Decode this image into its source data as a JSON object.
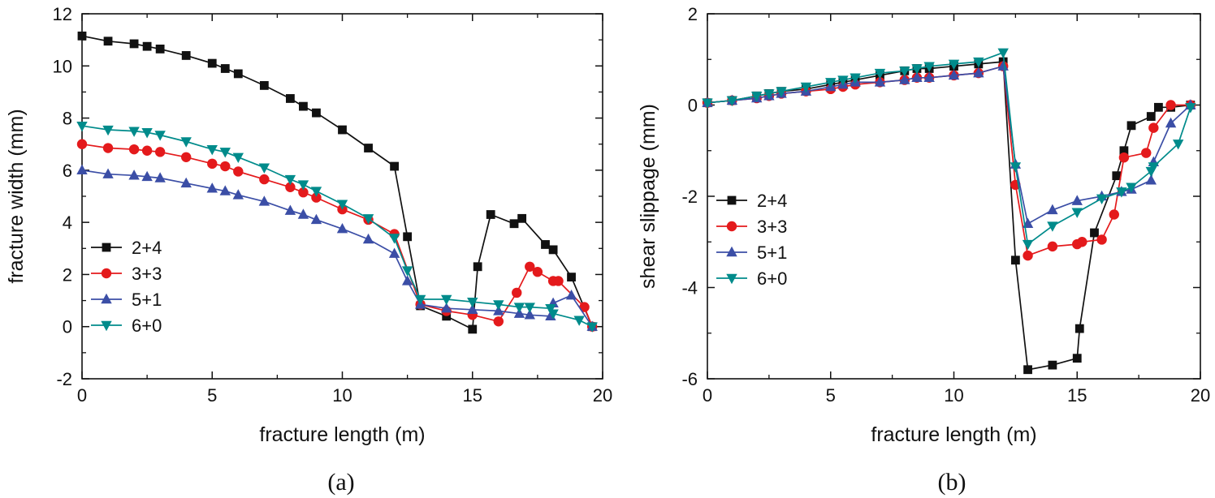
{
  "chart_data": [
    {
      "type": "line",
      "caption": "(a)",
      "xlabel": "fracture length (m)",
      "ylabel": "fracture width (mm)",
      "xlim": [
        0,
        20
      ],
      "ylim": [
        -2,
        12
      ],
      "xticks": [
        0,
        5,
        10,
        15,
        20
      ],
      "yticks": [
        -2,
        0,
        2,
        4,
        6,
        8,
        10,
        12
      ],
      "legend_position": "left-middle",
      "series": [
        {
          "name": "2+4",
          "color": "#111111",
          "marker": "square",
          "x": [
            0,
            1,
            2,
            2.5,
            3,
            4,
            5,
            5.5,
            6,
            7,
            8,
            8.5,
            9,
            10,
            11,
            12,
            12.5,
            13,
            14,
            15,
            15.2,
            15.7,
            16.6,
            16.9,
            17.8,
            18.1,
            18.8,
            19.6
          ],
          "y": [
            11.15,
            10.95,
            10.85,
            10.75,
            10.65,
            10.4,
            10.1,
            9.9,
            9.7,
            9.25,
            8.75,
            8.45,
            8.2,
            7.55,
            6.85,
            6.15,
            3.45,
            0.8,
            0.4,
            -0.1,
            2.3,
            4.3,
            3.95,
            4.15,
            3.15,
            2.95,
            1.9,
            0.0
          ]
        },
        {
          "name": "3+3",
          "color": "#e41a1c",
          "marker": "circle",
          "x": [
            0,
            1,
            2,
            2.5,
            3,
            4,
            5,
            5.5,
            6,
            7,
            8,
            8.5,
            9,
            10,
            11,
            12,
            13,
            14,
            15,
            16,
            16.7,
            17.2,
            17.5,
            18.1,
            18.3,
            19.3,
            19.6
          ],
          "y": [
            7.0,
            6.85,
            6.8,
            6.75,
            6.7,
            6.5,
            6.25,
            6.15,
            5.95,
            5.65,
            5.35,
            5.15,
            4.95,
            4.5,
            4.1,
            3.55,
            0.85,
            0.6,
            0.45,
            0.2,
            1.3,
            2.3,
            2.1,
            1.75,
            1.75,
            0.75,
            0.0
          ]
        },
        {
          "name": "5+1",
          "color": "#3b4ea6",
          "marker": "triangle-up",
          "x": [
            0,
            1,
            2,
            2.5,
            3,
            4,
            5,
            5.5,
            6,
            7,
            8,
            8.5,
            9,
            10,
            11,
            12,
            12.5,
            13,
            14,
            15,
            16,
            16.8,
            17.2,
            18,
            18.1,
            18.8,
            19.6
          ],
          "y": [
            6.0,
            5.85,
            5.8,
            5.75,
            5.7,
            5.5,
            5.3,
            5.2,
            5.05,
            4.8,
            4.45,
            4.3,
            4.1,
            3.75,
            3.35,
            2.8,
            1.75,
            0.85,
            0.7,
            0.65,
            0.6,
            0.5,
            0.45,
            0.4,
            0.9,
            1.2,
            0.0
          ]
        },
        {
          "name": "6+0",
          "color": "#008b8b",
          "marker": "triangle-down",
          "x": [
            0,
            1,
            2,
            2.5,
            3,
            4,
            5,
            5.5,
            6,
            7,
            8,
            8.5,
            9,
            10,
            11,
            12,
            12.5,
            13,
            14,
            15,
            16,
            16.8,
            17.2,
            18,
            18.1,
            19.1,
            19.6
          ],
          "y": [
            7.7,
            7.55,
            7.5,
            7.45,
            7.35,
            7.1,
            6.8,
            6.7,
            6.5,
            6.1,
            5.65,
            5.45,
            5.2,
            4.7,
            4.15,
            3.4,
            2.15,
            1.05,
            1.05,
            0.95,
            0.85,
            0.75,
            0.75,
            0.7,
            0.5,
            0.25,
            0.0
          ]
        }
      ]
    },
    {
      "type": "line",
      "caption": "(b)",
      "xlabel": "fracture length (m)",
      "ylabel": "shear slippage (mm)",
      "xlim": [
        0,
        20
      ],
      "ylim": [
        -6,
        2
      ],
      "xticks": [
        0,
        5,
        10,
        15,
        20
      ],
      "yticks": [
        -6,
        -4,
        -2,
        0,
        2
      ],
      "legend_position": "left-middle",
      "series": [
        {
          "name": "2+4",
          "color": "#111111",
          "marker": "square",
          "x": [
            0,
            1,
            2,
            2.5,
            3,
            4,
            5,
            5.5,
            6,
            7,
            8,
            8.5,
            9,
            10,
            11,
            12,
            12.5,
            13,
            14,
            15,
            15.1,
            15.7,
            16.6,
            16.9,
            17.2,
            18,
            18.3,
            18.8,
            19.6
          ],
          "y": [
            0.05,
            0.1,
            0.2,
            0.25,
            0.3,
            0.35,
            0.45,
            0.5,
            0.55,
            0.65,
            0.75,
            0.8,
            0.8,
            0.85,
            0.9,
            0.95,
            -3.4,
            -5.8,
            -5.7,
            -5.55,
            -4.9,
            -2.8,
            -1.55,
            -1.0,
            -0.45,
            -0.25,
            -0.05,
            -0.05,
            0.0
          ]
        },
        {
          "name": "3+3",
          "color": "#e41a1c",
          "marker": "circle",
          "x": [
            0,
            1,
            2,
            2.5,
            3,
            4,
            5,
            5.5,
            6,
            7,
            8,
            8.5,
            9,
            10,
            11,
            12,
            12.5,
            13,
            14,
            15,
            15.2,
            16,
            16.5,
            16.9,
            17.8,
            18.1,
            18.8,
            19.6
          ],
          "y": [
            0.05,
            0.1,
            0.15,
            0.2,
            0.25,
            0.3,
            0.35,
            0.4,
            0.45,
            0.5,
            0.55,
            0.6,
            0.6,
            0.65,
            0.7,
            0.85,
            -1.75,
            -3.3,
            -3.1,
            -3.05,
            -3.0,
            -2.95,
            -2.4,
            -1.15,
            -1.05,
            -0.5,
            0.0,
            0.0
          ]
        },
        {
          "name": "5+1",
          "color": "#3b4ea6",
          "marker": "triangle-up",
          "x": [
            0,
            1,
            2,
            2.5,
            3,
            4,
            5,
            5.5,
            6,
            7,
            8,
            8.5,
            9,
            10,
            11,
            12,
            12.5,
            13,
            14,
            15,
            16,
            16.8,
            17.2,
            18,
            18.1,
            18.8,
            19.6
          ],
          "y": [
            0.05,
            0.1,
            0.15,
            0.2,
            0.25,
            0.3,
            0.4,
            0.45,
            0.5,
            0.5,
            0.55,
            0.6,
            0.6,
            0.65,
            0.7,
            0.85,
            -1.3,
            -2.6,
            -2.3,
            -2.1,
            -2.0,
            -1.9,
            -1.85,
            -1.65,
            -1.25,
            -0.4,
            0.0
          ]
        },
        {
          "name": "6+0",
          "color": "#008b8b",
          "marker": "triangle-down",
          "x": [
            0,
            1,
            2,
            2.5,
            3,
            4,
            5,
            5.5,
            6,
            7,
            8,
            8.5,
            9,
            10,
            11,
            12,
            12.5,
            13,
            14,
            15,
            16,
            16.8,
            17.2,
            18,
            18.1,
            19.1,
            19.6
          ],
          "y": [
            0.05,
            0.1,
            0.2,
            0.25,
            0.3,
            0.4,
            0.5,
            0.55,
            0.6,
            0.7,
            0.75,
            0.8,
            0.85,
            0.9,
            0.95,
            1.15,
            -1.35,
            -3.05,
            -2.65,
            -2.35,
            -2.05,
            -1.9,
            -1.8,
            -1.45,
            -1.35,
            -0.85,
            -0.05
          ]
        }
      ]
    }
  ]
}
